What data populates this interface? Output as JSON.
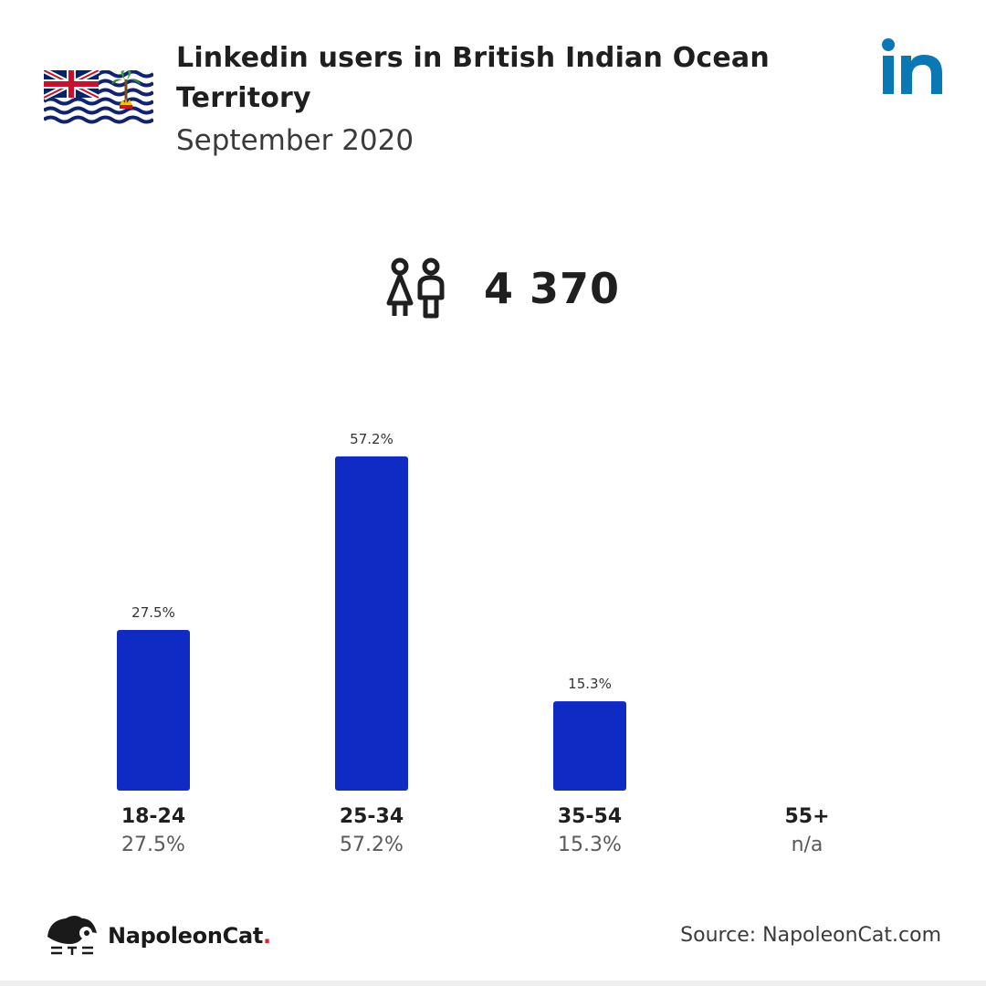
{
  "header": {
    "title": "Linkedin users in British Indian Ocean Territory",
    "subtitle": "September 2020"
  },
  "total": {
    "value": "4 370",
    "icon": "people-icon"
  },
  "footer": {
    "brand": "NapoleonCat",
    "brand_dot": ".",
    "source": "Source: NapoleonCat.com"
  },
  "icons": {
    "flag": "british-indian-ocean-territory-flag",
    "linkedin": "linkedin-logo",
    "brand": "napoleoncat-logo"
  },
  "colors": {
    "bar": "#102bc3",
    "linkedin": "#0a78b5",
    "brand_dot": "#e0242b"
  },
  "chart_data": {
    "type": "bar",
    "categories": [
      "18-24",
      "25-34",
      "35-54",
      "55+"
    ],
    "values": [
      27.5,
      57.2,
      15.3,
      null
    ],
    "value_labels": [
      "27.5%",
      "57.2%",
      "15.3%",
      "n/a"
    ],
    "ylim": [
      0,
      60
    ],
    "grid": false
  }
}
